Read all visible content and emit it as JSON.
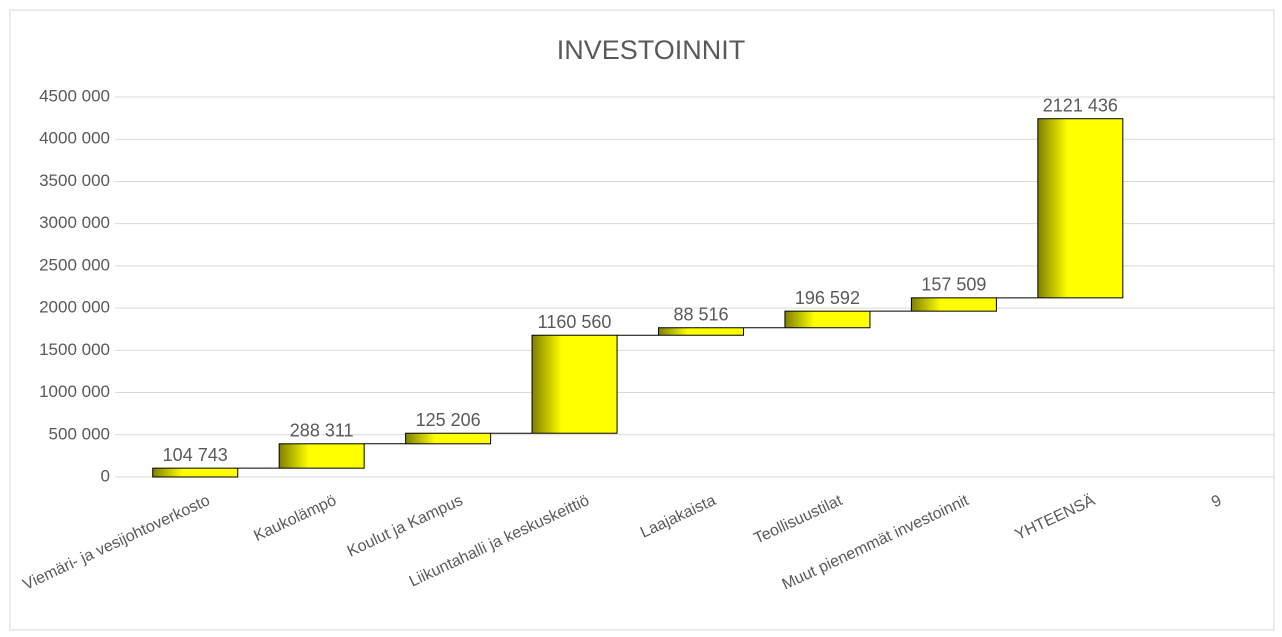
{
  "chart_data": {
    "type": "waterfall",
    "title": "INVESTOINNIT",
    "categories": [
      "Viemäri- ja vesijohtoverkosto",
      "Kaukolämpö",
      "Koulut ja Kampus",
      "Liikuntahalli ja keskuskeittiö",
      "Laajakaista",
      "Teollisuustilat",
      "Muut pienemmät investoinnit",
      "YHTEENSÄ",
      "9"
    ],
    "values": [
      104743,
      288311,
      125206,
      1160560,
      88516,
      196592,
      157509,
      2121436,
      null
    ],
    "value_labels": [
      "104 743",
      "288 311",
      "125 206",
      "1160 560",
      "88 516",
      "196 592",
      "157 509",
      "2121 436",
      null
    ],
    "color": "#ffff00",
    "ylim": [
      0,
      4500000
    ],
    "yticks": [
      0,
      {
        "value": 500000,
        "label": "500 000"
      },
      {
        "value": 1000000,
        "label": "1000 000"
      },
      {
        "value": 1500000,
        "label": "1500 000"
      },
      {
        "value": 2000000,
        "label": "2000 000"
      },
      {
        "value": 2500000,
        "label": "2500 000"
      },
      {
        "value": 3000000,
        "label": "3000 000"
      },
      {
        "value": 3500000,
        "label": "3500 000"
      },
      {
        "value": 4000000,
        "label": "4000 000"
      },
      {
        "value": 4500000,
        "label": "4500 000"
      }
    ],
    "grid": true
  }
}
